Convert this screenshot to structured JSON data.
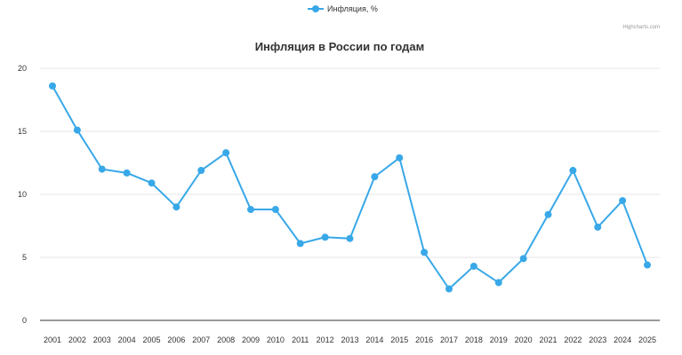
{
  "chart_data": {
    "type": "line",
    "title": "Инфляция в России по годам",
    "credit": "Highcharts.com",
    "legend_position": "top-center",
    "grid": true,
    "ylim": [
      0,
      20
    ],
    "yticks": [
      0,
      5,
      10,
      15,
      20
    ],
    "categories": [
      "2001",
      "2002",
      "2003",
      "2004",
      "2005",
      "2006",
      "2007",
      "2008",
      "2009",
      "2010",
      "2011",
      "2012",
      "2013",
      "2014",
      "2015",
      "2016",
      "2017",
      "2018",
      "2019",
      "2020",
      "2021",
      "2022",
      "2023",
      "2024",
      "2025"
    ],
    "series": [
      {
        "name": "Инфляция, %",
        "color": "#38a8e8",
        "values": [
          18.6,
          15.1,
          12.0,
          11.7,
          10.9,
          9.0,
          11.9,
          13.3,
          8.8,
          8.8,
          6.1,
          6.6,
          6.5,
          11.4,
          12.9,
          5.4,
          2.5,
          4.3,
          3.0,
          4.9,
          8.4,
          11.9,
          7.4,
          9.5,
          4.4
        ]
      }
    ]
  }
}
